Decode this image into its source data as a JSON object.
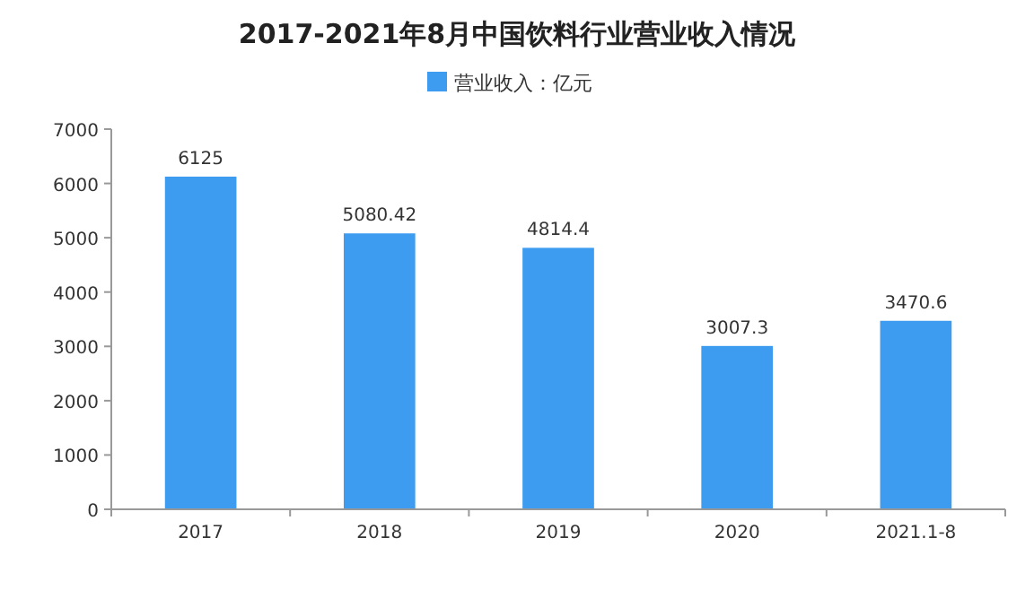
{
  "chart_data": {
    "type": "bar",
    "title": "2017-2021年8月中国饮料行业营业收入情况",
    "categories": [
      "2017",
      "2018",
      "2019",
      "2020",
      "2021.1-8"
    ],
    "series": [
      {
        "name": "营业收入：亿元",
        "color": "#3d9cf0",
        "values": [
          6125,
          5080.42,
          4814.4,
          3007.3,
          3470.6
        ]
      }
    ],
    "ylim": [
      0,
      7000
    ],
    "yticks": [
      0,
      1000,
      2000,
      3000,
      4000,
      5000,
      6000,
      7000
    ],
    "data_labels": true,
    "legend": "top",
    "grid": false
  }
}
